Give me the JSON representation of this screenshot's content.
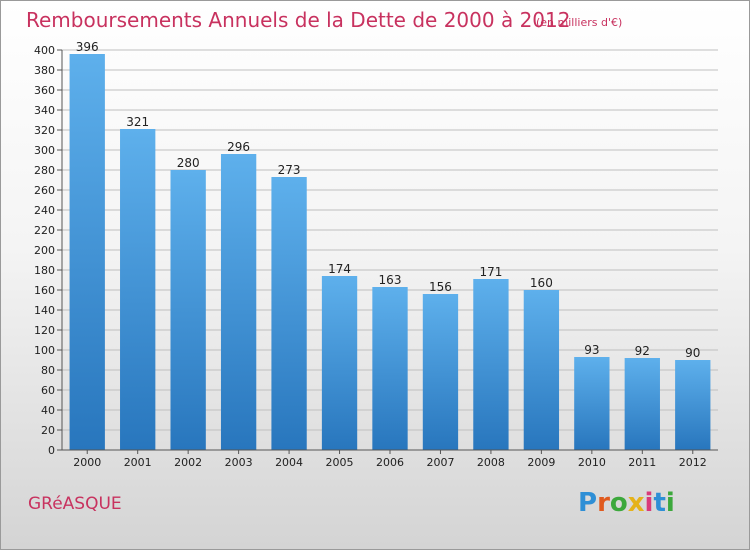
{
  "title": "Remboursements Annuels de la Dette de 2000 à 2012",
  "subtitle": "(en milliers d'€)",
  "city": "GRéASQUE",
  "logo": {
    "letters": [
      "P",
      "r",
      "o",
      "x",
      "i",
      "t",
      "i"
    ],
    "colors": [
      "#2e8fd6",
      "#e05a1e",
      "#3ca83c",
      "#e5b21a",
      "#d93a7a",
      "#2e8fd6",
      "#3ca83c"
    ]
  },
  "colors": {
    "bar_top": "#5eb0ec",
    "bar_bottom": "#2876bd",
    "title": "#c8325f",
    "grid": "#bfbfbf"
  },
  "chart_data": {
    "type": "bar",
    "categories": [
      "2000",
      "2001",
      "2002",
      "2003",
      "2004",
      "2005",
      "2006",
      "2007",
      "2008",
      "2009",
      "2010",
      "2011",
      "2012"
    ],
    "values": [
      396,
      321,
      280,
      296,
      273,
      174,
      163,
      156,
      171,
      160,
      93,
      92,
      90
    ],
    "title": "Remboursements Annuels de la Dette de 2000 à 2012",
    "ylim": [
      0,
      400
    ],
    "ytick_step": 20,
    "grid": true,
    "legend": "none"
  }
}
